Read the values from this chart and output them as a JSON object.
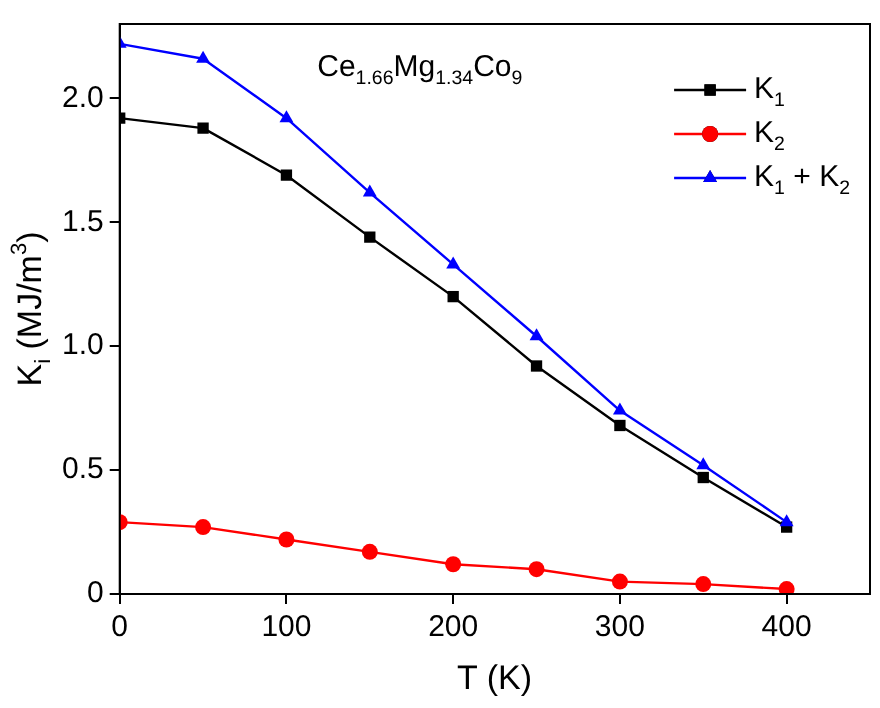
{
  "chart_data": {
    "type": "line",
    "xlabel": "T (K)",
    "ylabel": "K$_{i}$ (MJ/m$^{3}$)",
    "x": [
      0,
      50,
      100,
      150,
      200,
      250,
      300,
      350,
      400
    ],
    "series": [
      {
        "name": "K$_{1}$",
        "color": "#000000",
        "marker": "square",
        "values": [
          1.92,
          1.88,
          1.69,
          1.44,
          1.2,
          0.92,
          0.68,
          0.47,
          0.27
        ]
      },
      {
        "name": "K$_{2}$",
        "color": "#ff0000",
        "marker": "circle",
        "values": [
          0.29,
          0.27,
          0.22,
          0.17,
          0.12,
          0.1,
          0.05,
          0.04,
          0.02
        ]
      },
      {
        "name": "K$_{1}$ + K$_{2}$",
        "color": "#0000ff",
        "marker": "triangle",
        "values": [
          2.22,
          2.16,
          1.92,
          1.62,
          1.33,
          1.04,
          0.74,
          0.52,
          0.29
        ]
      }
    ],
    "annotations": [
      "Ce$_{1.66}$Mg$_{1.34}$Co$_{9}$"
    ],
    "xlim": [
      0,
      450
    ],
    "xticks": [
      0,
      100,
      200,
      300,
      400
    ],
    "ylim": [
      0,
      2.3
    ],
    "yticks": [
      0,
      0.5,
      {
        "value": 1,
        "label": "1.0"
      },
      1.5,
      {
        "value": 2,
        "label": "2.0"
      }
    ],
    "grid": false,
    "legend": "top right",
    "line_style": "solid"
  }
}
